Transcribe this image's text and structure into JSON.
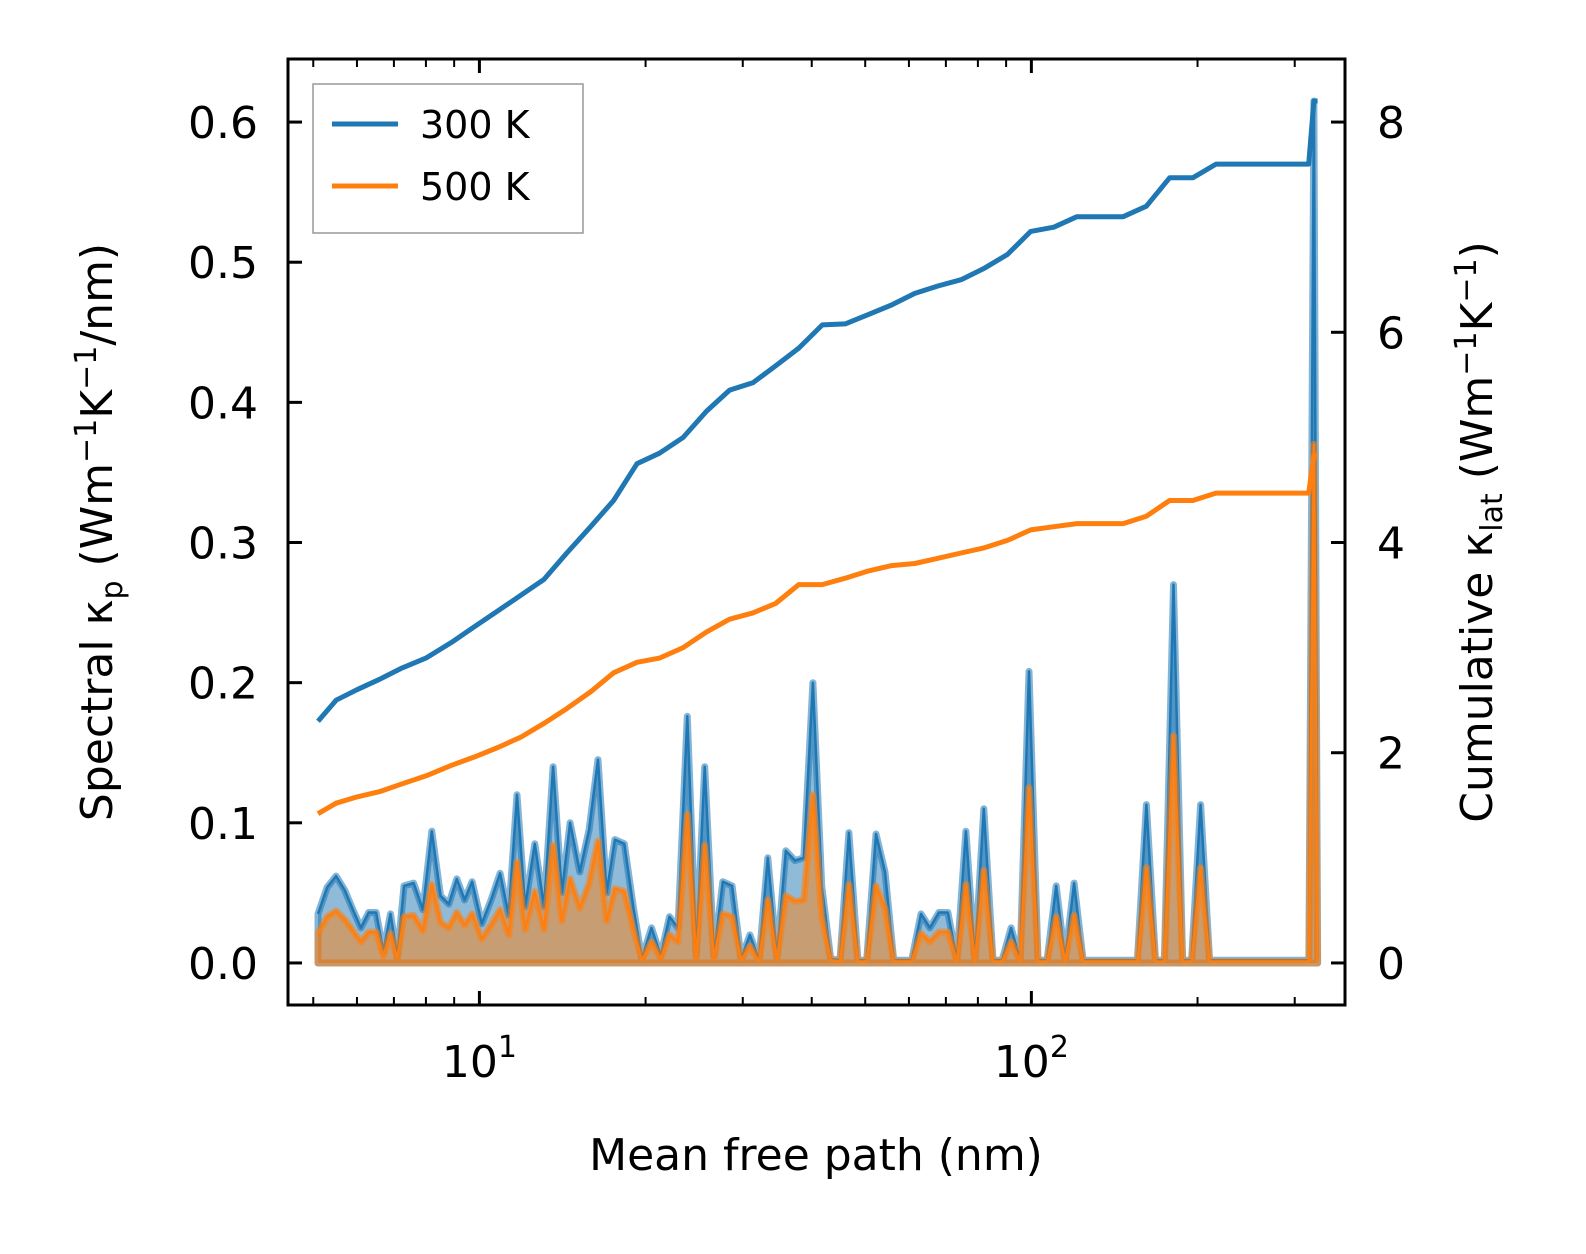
{
  "chart_data": {
    "type": "line",
    "title": "",
    "xlabel": "Mean free path (nm)",
    "ylabel_left": {
      "text": "Spectral κ",
      "sub": "p",
      "units_pre": " (Wm",
      "sup1": "−1",
      "mid": "K",
      "sup2": "−1",
      "units_post": "/nm)"
    },
    "ylabel_right": {
      "text": "Cumulative κ",
      "sub": "lat",
      "units_pre": " (Wm",
      "sup1": "−1",
      "mid": "K",
      "sup2": "−1",
      "units_post": ")"
    },
    "xscale": "log",
    "xlim": [
      4.5,
      370
    ],
    "ylim_left": [
      -0.03,
      0.645
    ],
    "ylim_right": [
      -0.4,
      8.6
    ],
    "xticks": [
      {
        "base": "10",
        "exp": "1",
        "value": 10
      },
      {
        "base": "10",
        "exp": "2",
        "value": 100
      }
    ],
    "yticks_left": [
      "0.0",
      "0.1",
      "0.2",
      "0.3",
      "0.4",
      "0.5",
      "0.6"
    ],
    "yticks_right": [
      "0",
      "2",
      "4",
      "6",
      "8"
    ],
    "legend": {
      "position": "upper-left",
      "entries": [
        "300 K",
        "500 K"
      ]
    },
    "colors": {
      "300 K": "#1f77b4",
      "500 K": "#ff7f0e"
    },
    "cumulative_series": [
      {
        "name": "300 K",
        "axis": "right",
        "x": [
          5.1,
          5.5,
          6.0,
          6.6,
          7.2,
          8.0,
          8.9,
          9.8,
          10.8,
          11.9,
          13.1,
          14.4,
          15.9,
          17.5,
          19.3,
          21.2,
          23.4,
          25.8,
          28.4,
          31.3,
          34.4,
          37.9,
          41.8,
          46.0,
          50.7,
          55.8,
          61.5,
          67.7,
          74.6,
          82.2,
          90.5,
          99.7,
          109.8,
          120.9,
          133.2,
          146.7,
          161.6,
          178.0,
          196.1,
          216.0,
          237.9,
          262.0,
          288.6,
          318.0,
          325.0,
          330.0
        ],
        "y": [
          2.3,
          2.5,
          2.6,
          2.7,
          2.8,
          2.9,
          3.05,
          3.2,
          3.35,
          3.5,
          3.65,
          3.9,
          4.15,
          4.4,
          4.75,
          4.85,
          5.0,
          5.25,
          5.45,
          5.52,
          5.68,
          5.85,
          6.07,
          6.08,
          6.17,
          6.26,
          6.37,
          6.44,
          6.5,
          6.61,
          6.74,
          6.96,
          7.0,
          7.1,
          7.1,
          7.1,
          7.2,
          7.47,
          7.47,
          7.6,
          7.6,
          7.6,
          7.6,
          7.6,
          8.2,
          8.2
        ]
      },
      {
        "name": "500 K",
        "axis": "right",
        "x": [
          5.1,
          5.5,
          6.0,
          6.6,
          7.2,
          8.0,
          8.9,
          9.8,
          10.8,
          11.9,
          13.1,
          14.4,
          15.9,
          17.5,
          19.3,
          21.2,
          23.4,
          25.8,
          28.4,
          31.3,
          34.4,
          37.9,
          41.8,
          46.0,
          50.7,
          55.8,
          61.5,
          67.7,
          74.6,
          82.2,
          90.5,
          99.7,
          109.8,
          120.9,
          133.2,
          146.7,
          161.6,
          178.0,
          196.1,
          216.0,
          237.9,
          262.0,
          288.6,
          318.0,
          325.0,
          330.0
        ],
        "y": [
          1.42,
          1.52,
          1.58,
          1.63,
          1.7,
          1.78,
          1.88,
          1.96,
          2.05,
          2.15,
          2.28,
          2.42,
          2.58,
          2.76,
          2.86,
          2.9,
          3.0,
          3.15,
          3.27,
          3.33,
          3.42,
          3.6,
          3.6,
          3.66,
          3.73,
          3.78,
          3.8,
          3.85,
          3.9,
          3.95,
          4.02,
          4.12,
          4.15,
          4.18,
          4.18,
          4.18,
          4.25,
          4.4,
          4.4,
          4.47,
          4.47,
          4.47,
          4.47,
          4.47,
          4.83,
          4.83
        ]
      }
    ],
    "spectral_series": [
      {
        "name": "300 K",
        "axis": "left",
        "x": [
          5.1,
          5.3,
          5.5,
          5.7,
          5.9,
          6.1,
          6.3,
          6.5,
          6.7,
          6.9,
          7.1,
          7.3,
          7.6,
          7.9,
          8.2,
          8.5,
          8.8,
          9.1,
          9.4,
          9.7,
          10.1,
          10.5,
          10.9,
          11.3,
          11.7,
          12.1,
          12.6,
          13.1,
          13.6,
          14.1,
          14.6,
          15.2,
          15.8,
          16.4,
          17.0,
          17.6,
          18.3,
          19.0,
          19.7,
          20.5,
          21.3,
          22.1,
          22.9,
          23.8,
          24.7,
          25.6,
          26.6,
          27.6,
          28.7,
          29.8,
          30.9,
          32.1,
          33.3,
          34.6,
          35.9,
          37.3,
          38.7,
          40.2,
          41.7,
          43.3,
          45.0,
          46.7,
          48.5,
          50.3,
          52.3,
          54.3,
          56.3,
          58.5,
          60.7,
          63.1,
          65.5,
          68.0,
          70.6,
          73.3,
          76.1,
          79.0,
          82.0,
          85.2,
          88.5,
          91.9,
          95.4,
          99.0,
          102.8,
          106.8,
          110.9,
          115.1,
          119.5,
          124.1,
          128.9,
          133.8,
          139.0,
          144.3,
          149.9,
          155.6,
          161.6,
          167.8,
          174.2,
          180.9,
          187.9,
          195.1,
          202.6,
          210.3,
          218.4,
          226.8,
          235.5,
          244.5,
          253.9,
          263.7,
          273.8,
          284.3,
          295.2,
          306.6,
          318.3,
          325.0,
          330.0
        ],
        "y": [
          0.035,
          0.054,
          0.062,
          0.052,
          0.038,
          0.025,
          0.036,
          0.036,
          0.008,
          0.035,
          0.004,
          0.055,
          0.057,
          0.038,
          0.094,
          0.048,
          0.042,
          0.06,
          0.045,
          0.058,
          0.028,
          0.045,
          0.064,
          0.034,
          0.12,
          0.04,
          0.085,
          0.04,
          0.14,
          0.05,
          0.1,
          0.065,
          0.095,
          0.145,
          0.05,
          0.088,
          0.085,
          0.04,
          0.003,
          0.025,
          0.005,
          0.033,
          0.025,
          0.176,
          0.005,
          0.14,
          0.005,
          0.058,
          0.055,
          0.003,
          0.02,
          0.002,
          0.075,
          0.004,
          0.08,
          0.073,
          0.075,
          0.2,
          0.055,
          0.003,
          0.002,
          0.093,
          0.002,
          0.002,
          0.092,
          0.065,
          0.002,
          0.002,
          0.002,
          0.035,
          0.025,
          0.036,
          0.036,
          0.002,
          0.094,
          0.002,
          0.11,
          0.002,
          0.002,
          0.025,
          0.002,
          0.208,
          0.002,
          0.002,
          0.055,
          0.002,
          0.057,
          0.002,
          0.002,
          0.002,
          0.002,
          0.002,
          0.002,
          0.002,
          0.113,
          0.002,
          0.002,
          0.27,
          0.002,
          0.002,
          0.113,
          0.002,
          0.002,
          0.002,
          0.002,
          0.002,
          0.002,
          0.002,
          0.002,
          0.002,
          0.002,
          0.002,
          0.002,
          0.615,
          0.002
        ]
      },
      {
        "name": "500 K",
        "axis": "left",
        "x": [
          5.1,
          5.3,
          5.5,
          5.7,
          5.9,
          6.1,
          6.3,
          6.5,
          6.7,
          6.9,
          7.1,
          7.3,
          7.6,
          7.9,
          8.2,
          8.5,
          8.8,
          9.1,
          9.4,
          9.7,
          10.1,
          10.5,
          10.9,
          11.3,
          11.7,
          12.1,
          12.6,
          13.1,
          13.6,
          14.1,
          14.6,
          15.2,
          15.8,
          16.4,
          17.0,
          17.6,
          18.3,
          19.0,
          19.7,
          20.5,
          21.3,
          22.1,
          22.9,
          23.8,
          24.7,
          25.6,
          26.6,
          27.6,
          28.7,
          29.8,
          30.9,
          32.1,
          33.3,
          34.6,
          35.9,
          37.3,
          38.7,
          40.2,
          41.7,
          43.3,
          45.0,
          46.7,
          48.5,
          50.3,
          52.3,
          54.3,
          56.3,
          58.5,
          60.7,
          63.1,
          65.5,
          68.0,
          70.6,
          73.3,
          76.1,
          79.0,
          82.0,
          85.2,
          88.5,
          91.9,
          95.4,
          99.0,
          102.8,
          106.8,
          110.9,
          115.1,
          119.5,
          124.1,
          128.9,
          133.8,
          139.0,
          144.3,
          149.9,
          155.6,
          161.6,
          167.8,
          174.2,
          180.9,
          187.9,
          195.1,
          202.6,
          210.3,
          218.4,
          226.8,
          235.5,
          244.5,
          253.9,
          263.7,
          273.8,
          284.3,
          295.2,
          306.6,
          318.3,
          325.0,
          330.0
        ],
        "y": [
          0.021,
          0.033,
          0.037,
          0.031,
          0.023,
          0.015,
          0.022,
          0.022,
          0.005,
          0.021,
          0.003,
          0.033,
          0.034,
          0.023,
          0.056,
          0.029,
          0.025,
          0.036,
          0.027,
          0.035,
          0.017,
          0.027,
          0.038,
          0.02,
          0.072,
          0.024,
          0.051,
          0.024,
          0.084,
          0.03,
          0.06,
          0.039,
          0.057,
          0.087,
          0.03,
          0.053,
          0.051,
          0.024,
          0.002,
          0.015,
          0.003,
          0.02,
          0.015,
          0.106,
          0.003,
          0.084,
          0.003,
          0.035,
          0.033,
          0.002,
          0.012,
          0.001,
          0.045,
          0.002,
          0.048,
          0.044,
          0.045,
          0.12,
          0.033,
          0.002,
          0.001,
          0.056,
          0.001,
          0.001,
          0.055,
          0.039,
          0.001,
          0.001,
          0.001,
          0.021,
          0.015,
          0.022,
          0.022,
          0.001,
          0.056,
          0.001,
          0.066,
          0.001,
          0.001,
          0.015,
          0.001,
          0.125,
          0.001,
          0.001,
          0.033,
          0.001,
          0.034,
          0.001,
          0.001,
          0.001,
          0.001,
          0.001,
          0.001,
          0.001,
          0.068,
          0.001,
          0.001,
          0.162,
          0.001,
          0.001,
          0.068,
          0.001,
          0.001,
          0.001,
          0.001,
          0.001,
          0.001,
          0.001,
          0.001,
          0.001,
          0.001,
          0.001,
          0.001,
          0.37,
          0.001
        ]
      }
    ]
  }
}
